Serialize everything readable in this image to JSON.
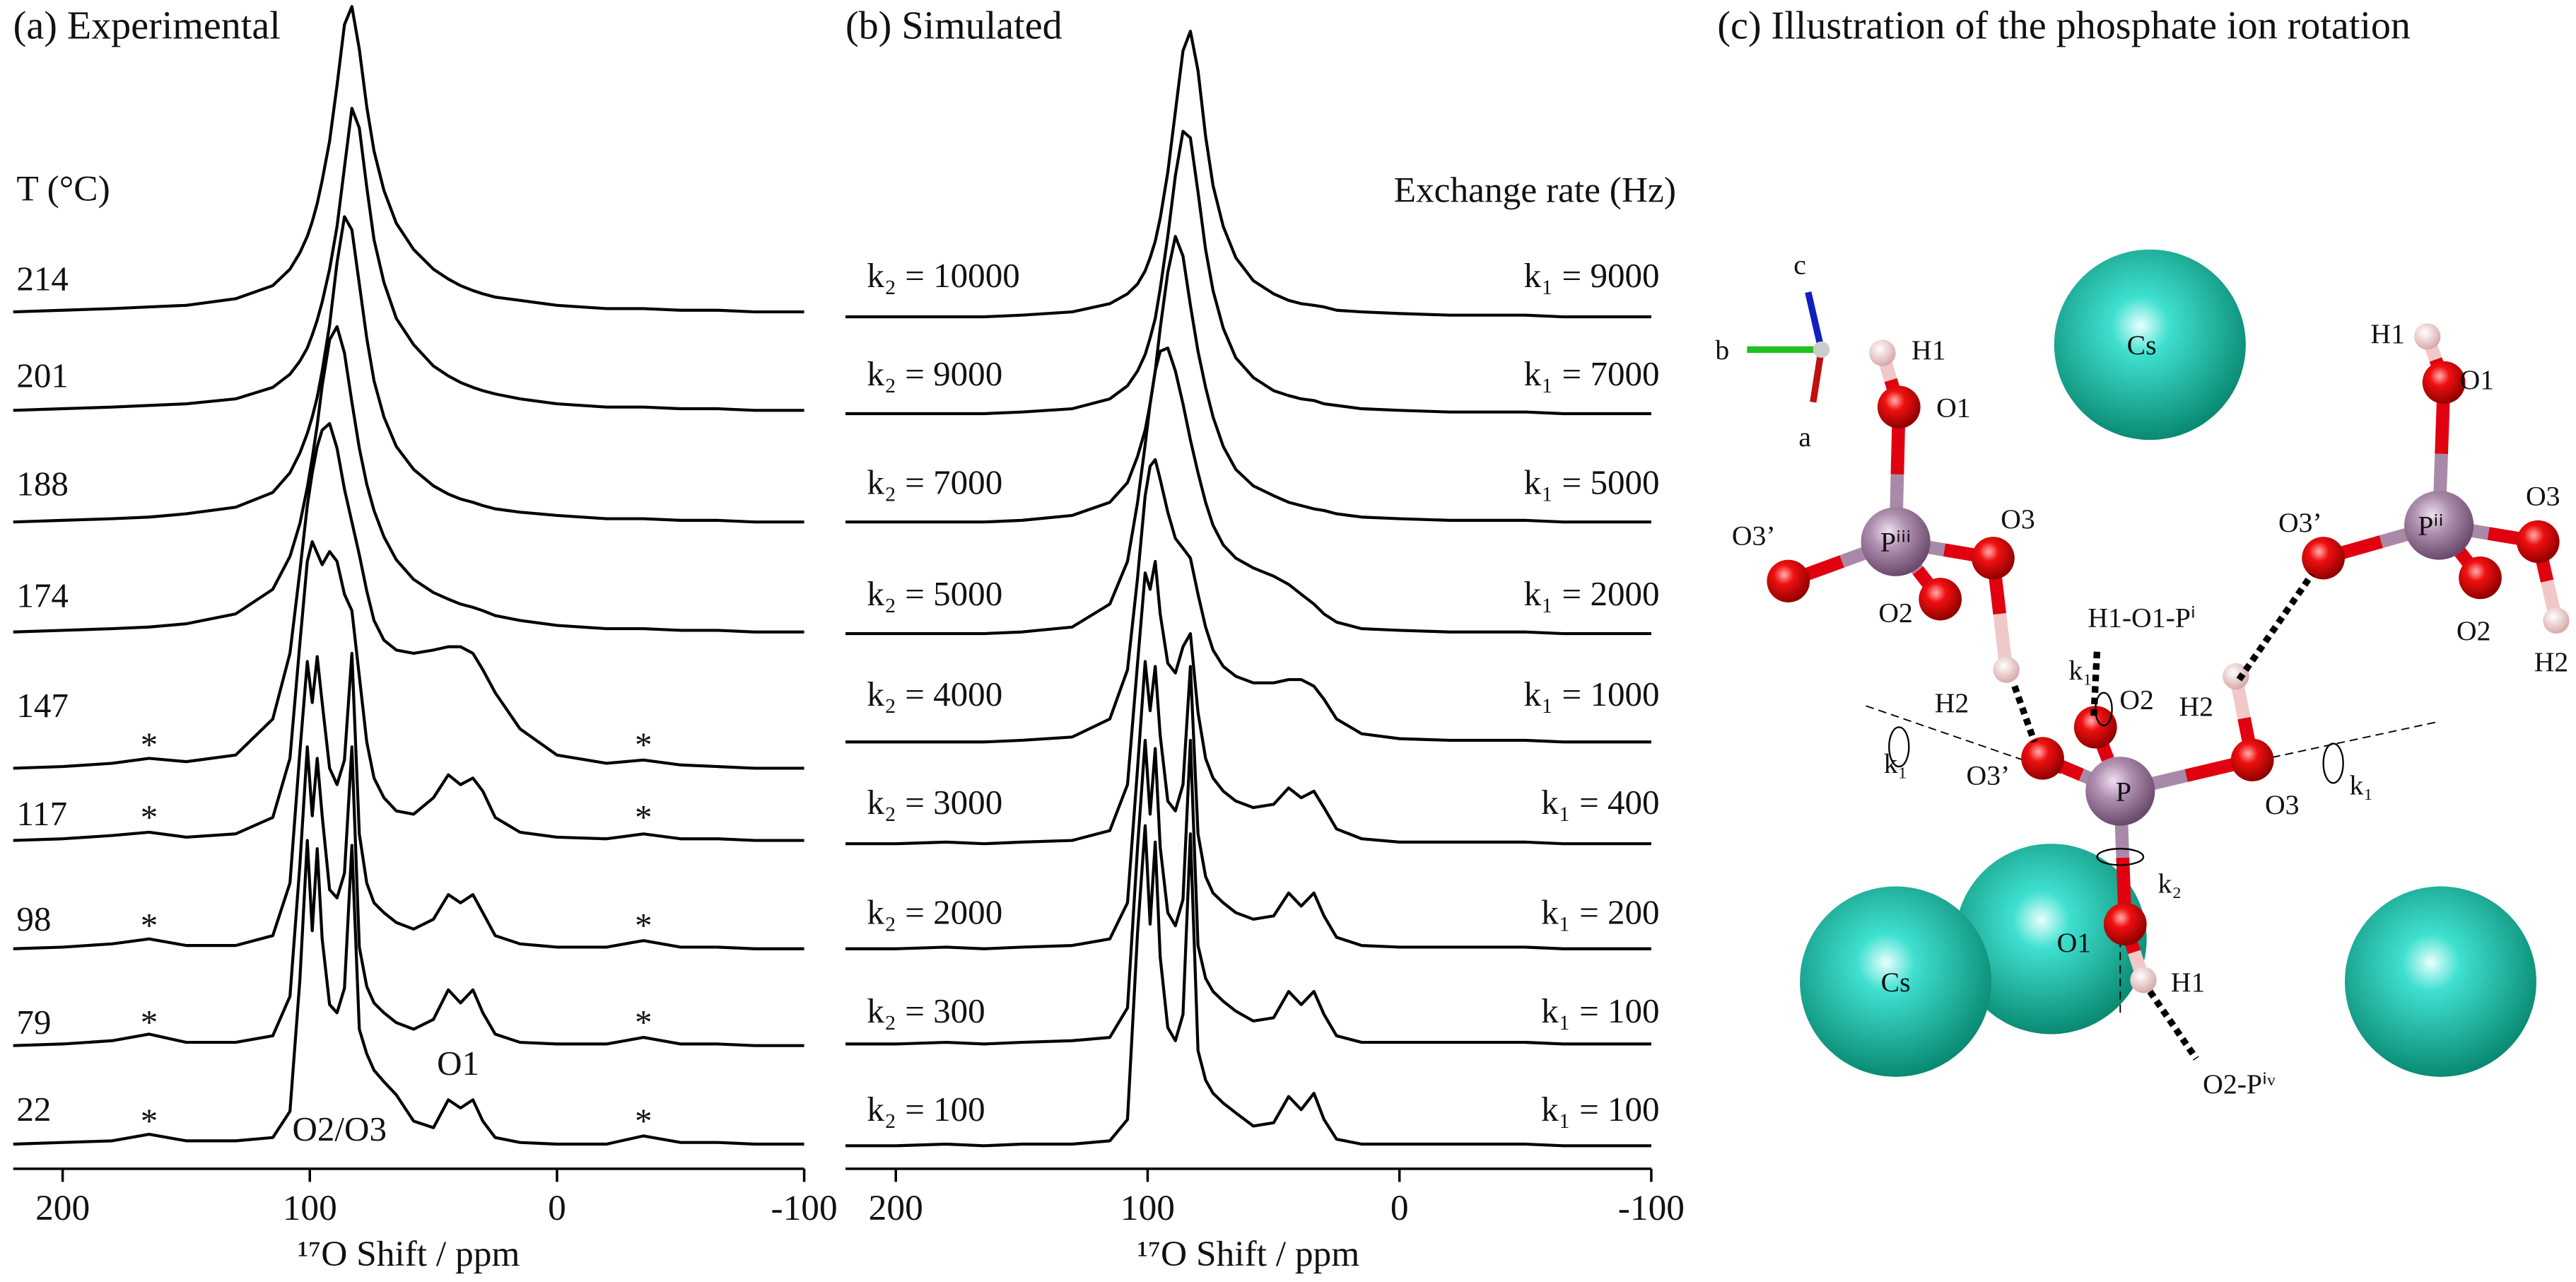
{
  "chart_data": [
    {
      "type": "line",
      "title": "(a) Experimental",
      "legend_title": "T (°C)",
      "xlabel": "¹⁷O Shift / ppm",
      "color": "#000000",
      "xlim": [
        220,
        -100
      ],
      "xticks": [
        200,
        100,
        0,
        -100
      ],
      "x": [
        220,
        200,
        180,
        165,
        150,
        130,
        115,
        108,
        104,
        101,
        99,
        97,
        95,
        92,
        89,
        86,
        83,
        80,
        77,
        74,
        70,
        65,
        58,
        50,
        44,
        39,
        34,
        30,
        25,
        15,
        0,
        -20,
        -35,
        -50,
        -65,
        -80,
        -90,
        -100
      ],
      "series": [
        {
          "name": "214",
          "values": [
            0,
            1,
            2,
            3,
            4,
            8,
            16,
            26,
            36,
            46,
            55,
            66,
            80,
            104,
            138,
            175,
            186,
            160,
            125,
            98,
            74,
            54,
            38,
            26,
            20,
            16,
            13,
            11,
            9,
            7,
            4,
            2,
            2,
            1,
            1,
            0,
            0,
            0
          ]
        },
        {
          "name": "201",
          "values": [
            0,
            1,
            2,
            3,
            4,
            7,
            14,
            22,
            30,
            38,
            46,
            55,
            66,
            86,
            112,
            148,
            184,
            172,
            136,
            104,
            78,
            56,
            40,
            27,
            21,
            17,
            14,
            12,
            10,
            7,
            4,
            2,
            2,
            1,
            1,
            0,
            0,
            0
          ]
        },
        {
          "name": "188",
          "values": [
            0,
            1,
            2,
            3,
            5,
            9,
            18,
            30,
            42,
            54,
            64,
            76,
            92,
            120,
            158,
            186,
            178,
            145,
            112,
            86,
            64,
            46,
            32,
            22,
            17,
            14,
            12,
            10,
            8,
            6,
            4,
            2,
            2,
            1,
            1,
            0,
            0,
            0
          ]
        },
        {
          "name": "174",
          "values": [
            0,
            1,
            2,
            3,
            5,
            11,
            26,
            46,
            66,
            88,
            106,
            126,
            150,
            178,
            186,
            170,
            140,
            112,
            90,
            74,
            58,
            44,
            32,
            24,
            20,
            17,
            15,
            13,
            10,
            7,
            4,
            2,
            2,
            1,
            1,
            0,
            0,
            0
          ]
        },
        {
          "name": "147",
          "values": [
            0,
            1,
            3,
            6,
            4,
            8,
            30,
            70,
            120,
            160,
            180,
            196,
            206,
            210,
            195,
            170,
            150,
            130,
            108,
            90,
            78,
            72,
            70,
            72,
            74,
            74,
            70,
            60,
            46,
            24,
            8,
            3,
            5,
            2,
            1,
            0,
            0,
            0
          ]
        },
        {
          "name": "117",
          "values": [
            0,
            1,
            3,
            5,
            2,
            4,
            14,
            50,
            120,
            170,
            182,
            175,
            168,
            176,
            170,
            150,
            140,
            100,
            60,
            38,
            26,
            18,
            16,
            26,
            40,
            34,
            38,
            30,
            14,
            5,
            2,
            1,
            4,
            1,
            1,
            0,
            0,
            0
          ]
        },
        {
          "name": "98",
          "values": [
            0,
            1,
            3,
            6,
            2,
            2,
            8,
            40,
            120,
            175,
            150,
            178,
            150,
            110,
            100,
            115,
            180,
            70,
            40,
            28,
            22,
            16,
            12,
            18,
            33,
            28,
            33,
            22,
            8,
            3,
            1,
            1,
            5,
            1,
            1,
            0,
            0,
            0
          ]
        },
        {
          "name": "79",
          "values": [
            0,
            1,
            3,
            7,
            2,
            2,
            6,
            30,
            110,
            182,
            140,
            175,
            140,
            95,
            90,
            105,
            182,
            60,
            36,
            26,
            20,
            14,
            10,
            16,
            34,
            26,
            34,
            20,
            7,
            2,
            1,
            1,
            5,
            1,
            1,
            0,
            0,
            0
          ]
        },
        {
          "name": "22",
          "values": [
            0,
            1,
            2,
            6,
            2,
            2,
            4,
            20,
            100,
            185,
            130,
            180,
            125,
            85,
            80,
            95,
            182,
            70,
            55,
            45,
            38,
            30,
            14,
            10,
            27,
            22,
            27,
            14,
            4,
            1,
            0,
            0,
            5,
            1,
            1,
            0,
            0,
            0
          ]
        }
      ],
      "annotations": [
        {
          "text": "*",
          "x": 165,
          "series": "147"
        },
        {
          "text": "*",
          "x": -35,
          "series": "147"
        },
        {
          "text": "*",
          "x": 165,
          "series": "117"
        },
        {
          "text": "*",
          "x": -35,
          "series": "117"
        },
        {
          "text": "*",
          "x": 165,
          "series": "98"
        },
        {
          "text": "*",
          "x": -35,
          "series": "98"
        },
        {
          "text": "*",
          "x": 165,
          "series": "79"
        },
        {
          "text": "*",
          "x": -35,
          "series": "79"
        },
        {
          "text": "*",
          "x": 165,
          "series": "22"
        },
        {
          "text": "*",
          "x": -35,
          "series": "22"
        },
        {
          "text": "O1",
          "x": 40,
          "series": "22"
        },
        {
          "text": "O2/O3",
          "x": 88,
          "series": "22"
        }
      ]
    },
    {
      "type": "line",
      "title": "(b) Simulated",
      "legend_title": "Exchange rate (Hz)",
      "xlabel": "¹⁷O Shift / ppm",
      "color": "#000000",
      "xlim": [
        220,
        -100
      ],
      "xticks": [
        200,
        100,
        0,
        -100
      ],
      "x": [
        220,
        200,
        180,
        165,
        150,
        130,
        115,
        108,
        104,
        101,
        99,
        97,
        95,
        92,
        89,
        86,
        83,
        80,
        77,
        74,
        70,
        65,
        58,
        50,
        44,
        39,
        34,
        30,
        25,
        15,
        0,
        -20,
        -35,
        -50,
        -65,
        -80,
        -90,
        -100
      ],
      "series": [
        {
          "name": "k₂ = 10000",
          "label_right": "k₁ = 9000",
          "values": [
            0,
            0,
            0,
            0,
            1,
            3,
            8,
            14,
            20,
            28,
            36,
            46,
            60,
            88,
            125,
            162,
            174,
            150,
            110,
            80,
            55,
            36,
            22,
            14,
            10,
            8,
            7,
            6,
            4,
            3,
            2,
            1,
            1,
            1,
            0,
            0,
            0,
            0
          ]
        },
        {
          "name": "k₂ = 9000",
          "label_right": "k₁ = 7000",
          "values": [
            0,
            0,
            0,
            0,
            1,
            3,
            9,
            17,
            26,
            36,
            46,
            58,
            76,
            108,
            145,
            172,
            168,
            135,
            100,
            75,
            52,
            34,
            22,
            14,
            11,
            9,
            8,
            6,
            5,
            3,
            2,
            1,
            1,
            1,
            0,
            0,
            0,
            0
          ]
        },
        {
          "name": "k₂ = 7000",
          "label_right": "k₁ = 5000",
          "values": [
            0,
            0,
            0,
            0,
            1,
            4,
            12,
            24,
            40,
            56,
            72,
            92,
            118,
            152,
            174,
            162,
            132,
            104,
            82,
            64,
            46,
            32,
            22,
            16,
            12,
            10,
            8,
            7,
            5,
            3,
            2,
            1,
            1,
            1,
            0,
            0,
            0,
            0
          ]
        },
        {
          "name": "k₂ = 5000",
          "label_right": "k₁ = 2000",
          "values": [
            0,
            0,
            0,
            0,
            1,
            4,
            18,
            44,
            80,
            115,
            140,
            160,
            172,
            174,
            160,
            140,
            118,
            98,
            80,
            66,
            54,
            46,
            40,
            35,
            30,
            24,
            18,
            12,
            7,
            3,
            2,
            1,
            1,
            1,
            0,
            0,
            0,
            0
          ]
        },
        {
          "name": "k₂ = 4000",
          "label_right": "k₁ = 1000",
          "values": [
            0,
            0,
            0,
            0,
            1,
            3,
            14,
            44,
            100,
            150,
            168,
            172,
            160,
            140,
            124,
            118,
            112,
            90,
            70,
            56,
            46,
            40,
            36,
            36,
            38,
            38,
            34,
            26,
            14,
            5,
            2,
            1,
            1,
            1,
            0,
            0,
            0,
            0
          ]
        },
        {
          "name": "k₂ = 3000",
          "label_right": "k₁ = 400",
          "values": [
            0,
            0,
            1,
            0,
            1,
            2,
            8,
            36,
            110,
            165,
            155,
            172,
            140,
            110,
            104,
            120,
            128,
            80,
            52,
            40,
            32,
            26,
            22,
            24,
            34,
            28,
            32,
            22,
            9,
            3,
            1,
            1,
            1,
            1,
            0,
            0,
            0,
            0
          ]
        },
        {
          "name": "k₂ = 2000",
          "label_right": "k₁ = 200",
          "values": [
            0,
            0,
            1,
            0,
            1,
            2,
            6,
            28,
            110,
            175,
            145,
            172,
            130,
            90,
            84,
            100,
            172,
            70,
            44,
            34,
            28,
            22,
            18,
            20,
            34,
            26,
            34,
            20,
            7,
            2,
            1,
            1,
            1,
            1,
            0,
            0,
            0,
            0
          ]
        },
        {
          "name": "k₂ = 300",
          "label_right": "k₁ = 100",
          "values": [
            0,
            0,
            1,
            0,
            1,
            2,
            4,
            22,
            120,
            185,
            140,
            180,
            120,
            80,
            72,
            88,
            185,
            60,
            40,
            32,
            26,
            20,
            14,
            16,
            32,
            24,
            32,
            18,
            5,
            1,
            1,
            1,
            1,
            1,
            0,
            0,
            0,
            0
          ]
        },
        {
          "name": "k₂ = 100",
          "label_right": "k₁ = 100",
          "values": [
            0,
            0,
            1,
            0,
            1,
            1,
            3,
            16,
            130,
            195,
            135,
            185,
            115,
            72,
            64,
            80,
            190,
            58,
            40,
            32,
            26,
            20,
            12,
            14,
            30,
            22,
            32,
            16,
            4,
            1,
            1,
            1,
            1,
            1,
            0,
            0,
            0,
            0
          ]
        }
      ]
    }
  ],
  "illustration": {
    "title": "(c) Illustration of the phosphate ion rotation",
    "labels": [
      "c",
      "b",
      "a",
      "H1",
      "O1",
      "O3’",
      "Pⁱⁱⁱ",
      "O3",
      "O2",
      "H2",
      "Cs",
      "H1",
      "O1",
      "O3’",
      "Pⁱⁱ",
      "O3",
      "O2",
      "H2",
      "H1-O1-Pⁱ",
      "k₁",
      "O2",
      "H2",
      "k₁",
      "O3’",
      "P",
      "O3",
      "k₁",
      "k₂",
      "Cs",
      "O1",
      "H1",
      "O2-Pⁱᵛ"
    ]
  }
}
